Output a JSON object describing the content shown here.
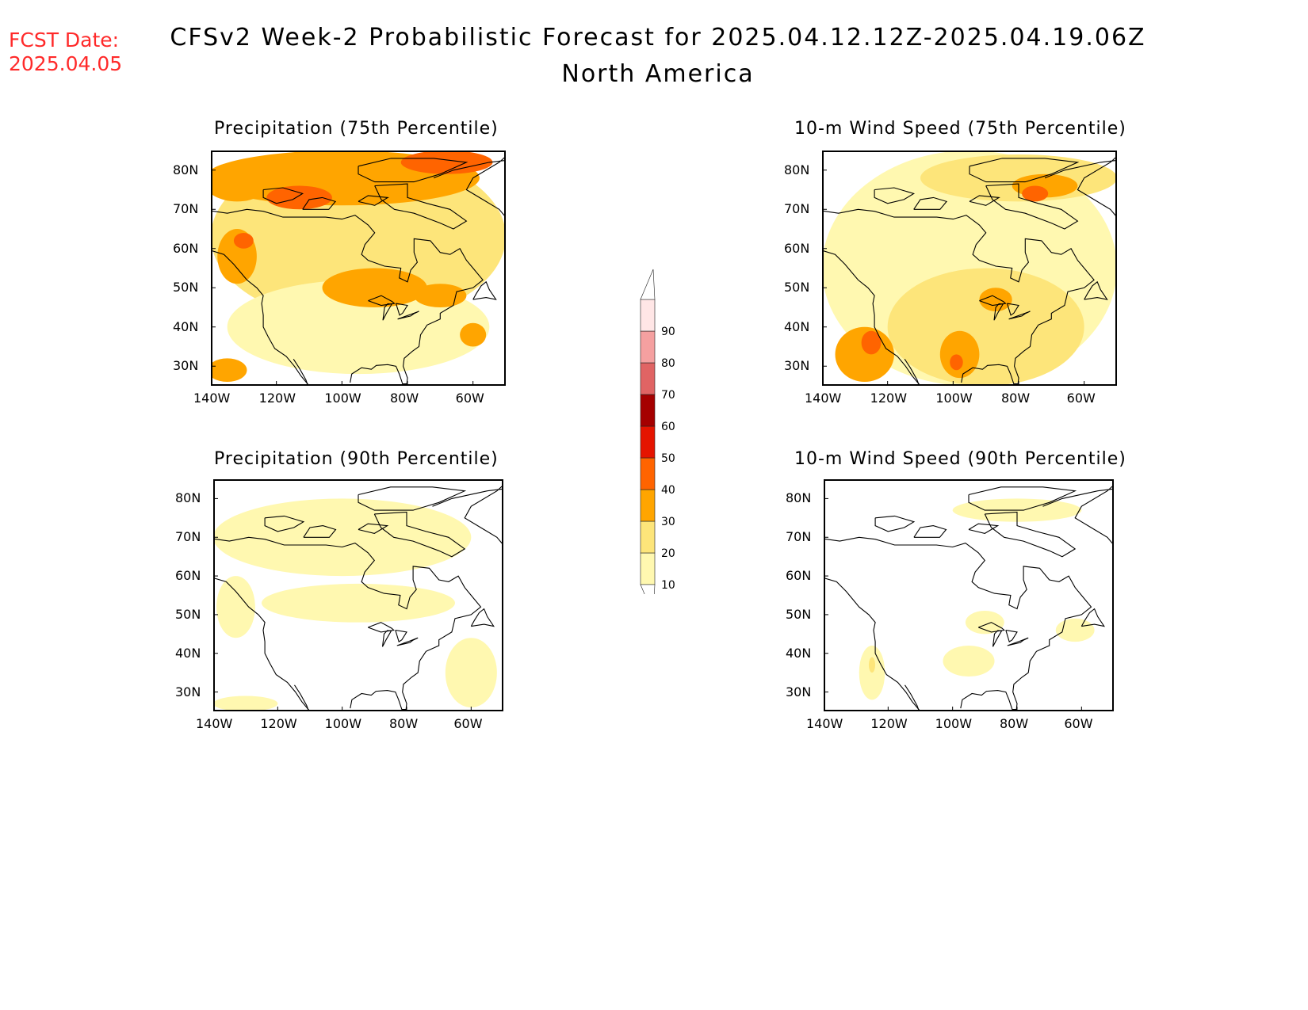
{
  "header": {
    "fcst_label": "FCST Date:",
    "fcst_date": "2025.04.05",
    "title": "CFSv2 Week-2 Probabilistic Forecast for 2025.04.12.12Z-2025.04.19.06Z",
    "subtitle": "North America"
  },
  "map_extent": {
    "lon": [
      -140,
      -50
    ],
    "lat": [
      25,
      85
    ]
  },
  "axes": {
    "lat_labels": [
      "30N",
      "40N",
      "50N",
      "60N",
      "70N",
      "80N"
    ],
    "lat_values": [
      30,
      40,
      50,
      60,
      70,
      80
    ],
    "lon_labels": [
      "140W",
      "120W",
      "100W",
      "80W",
      "60W"
    ],
    "lon_values": [
      -140,
      -120,
      -100,
      -80,
      -60
    ]
  },
  "panels": [
    {
      "id": "precip-75",
      "title": "Precipitation (75th Percentile)",
      "blobs": [
        {
          "lon": -95,
          "lat": 63,
          "rlon": 45,
          "rlat": 22,
          "level": 20
        },
        {
          "lon": -95,
          "lat": 40,
          "rlon": 40,
          "rlat": 12,
          "level": 10
        },
        {
          "lon": -100,
          "lat": 78,
          "rlon": 42,
          "rlat": 7,
          "level": 30
        },
        {
          "lon": -132,
          "lat": 77,
          "rlon": 10,
          "rlat": 5,
          "level": 30
        },
        {
          "lon": -113,
          "lat": 73,
          "rlon": 10,
          "rlat": 3,
          "level": 40
        },
        {
          "lon": -68,
          "lat": 82,
          "rlon": 14,
          "rlat": 3,
          "level": 40
        },
        {
          "lon": -90,
          "lat": 50,
          "rlon": 16,
          "rlat": 5,
          "level": 30
        },
        {
          "lon": -70,
          "lat": 48,
          "rlon": 8,
          "rlat": 3,
          "level": 30
        },
        {
          "lon": -132,
          "lat": 58,
          "rlon": 6,
          "rlat": 7,
          "level": 30
        },
        {
          "lon": -130,
          "lat": 62,
          "rlon": 3,
          "rlat": 2,
          "level": 40
        },
        {
          "lon": -135,
          "lat": 29,
          "rlon": 6,
          "rlat": 3,
          "level": 30
        },
        {
          "lon": -60,
          "lat": 38,
          "rlon": 4,
          "rlat": 3,
          "level": 30
        }
      ]
    },
    {
      "id": "wind-75",
      "title": "10-m Wind Speed (75th Percentile)",
      "blobs": [
        {
          "lon": -95,
          "lat": 55,
          "rlon": 45,
          "rlat": 30,
          "level": 10
        },
        {
          "lon": -90,
          "lat": 40,
          "rlon": 30,
          "rlat": 15,
          "level": 20
        },
        {
          "lon": -80,
          "lat": 78,
          "rlon": 30,
          "rlat": 6,
          "level": 20
        },
        {
          "lon": -127,
          "lat": 33,
          "rlon": 9,
          "rlat": 7,
          "level": 30
        },
        {
          "lon": -125,
          "lat": 36,
          "rlon": 3,
          "rlat": 3,
          "level": 40
        },
        {
          "lon": -98,
          "lat": 33,
          "rlon": 6,
          "rlat": 6,
          "level": 30
        },
        {
          "lon": -99,
          "lat": 31,
          "rlon": 2,
          "rlat": 2,
          "level": 40
        },
        {
          "lon": -72,
          "lat": 76,
          "rlon": 10,
          "rlat": 3,
          "level": 30
        },
        {
          "lon": -75,
          "lat": 74,
          "rlon": 4,
          "rlat": 2,
          "level": 40
        },
        {
          "lon": -87,
          "lat": 47,
          "rlon": 5,
          "rlat": 3,
          "level": 30
        }
      ]
    },
    {
      "id": "precip-90",
      "title": "Precipitation (90th Percentile)",
      "blobs": [
        {
          "lon": -100,
          "lat": 70,
          "rlon": 40,
          "rlat": 10,
          "level": 10
        },
        {
          "lon": -95,
          "lat": 53,
          "rlon": 30,
          "rlat": 5,
          "level": 10
        },
        {
          "lon": -60,
          "lat": 35,
          "rlon": 8,
          "rlat": 9,
          "level": 10
        },
        {
          "lon": -133,
          "lat": 52,
          "rlon": 6,
          "rlat": 8,
          "level": 10
        },
        {
          "lon": -130,
          "lat": 27,
          "rlon": 10,
          "rlat": 2,
          "level": 10
        }
      ]
    },
    {
      "id": "wind-90",
      "title": "10-m Wind Speed (90th Percentile)",
      "blobs": [
        {
          "lon": -125,
          "lat": 35,
          "rlon": 4,
          "rlat": 7,
          "level": 10
        },
        {
          "lon": -125,
          "lat": 37,
          "rlon": 1,
          "rlat": 2,
          "level": 20
        },
        {
          "lon": -95,
          "lat": 38,
          "rlon": 8,
          "rlat": 4,
          "level": 10
        },
        {
          "lon": -80,
          "lat": 77,
          "rlon": 20,
          "rlat": 3,
          "level": 10
        },
        {
          "lon": -62,
          "lat": 46,
          "rlon": 6,
          "rlat": 3,
          "level": 10
        },
        {
          "lon": -90,
          "lat": 48,
          "rlon": 6,
          "rlat": 3,
          "level": 10
        }
      ]
    }
  ],
  "colorbar": {
    "levels": [
      "10",
      "20",
      "30",
      "40",
      "50",
      "60",
      "70",
      "80",
      "90"
    ],
    "colors": [
      "#fff8b0",
      "#fde57a",
      "#ffa500",
      "#ff6400",
      "#e51400",
      "#a50000",
      "#e06464",
      "#f5a0a0",
      "#ffe6e6"
    ]
  },
  "colors": {
    "coastline": "#000000",
    "fcst_text": "#ff2a2a"
  }
}
